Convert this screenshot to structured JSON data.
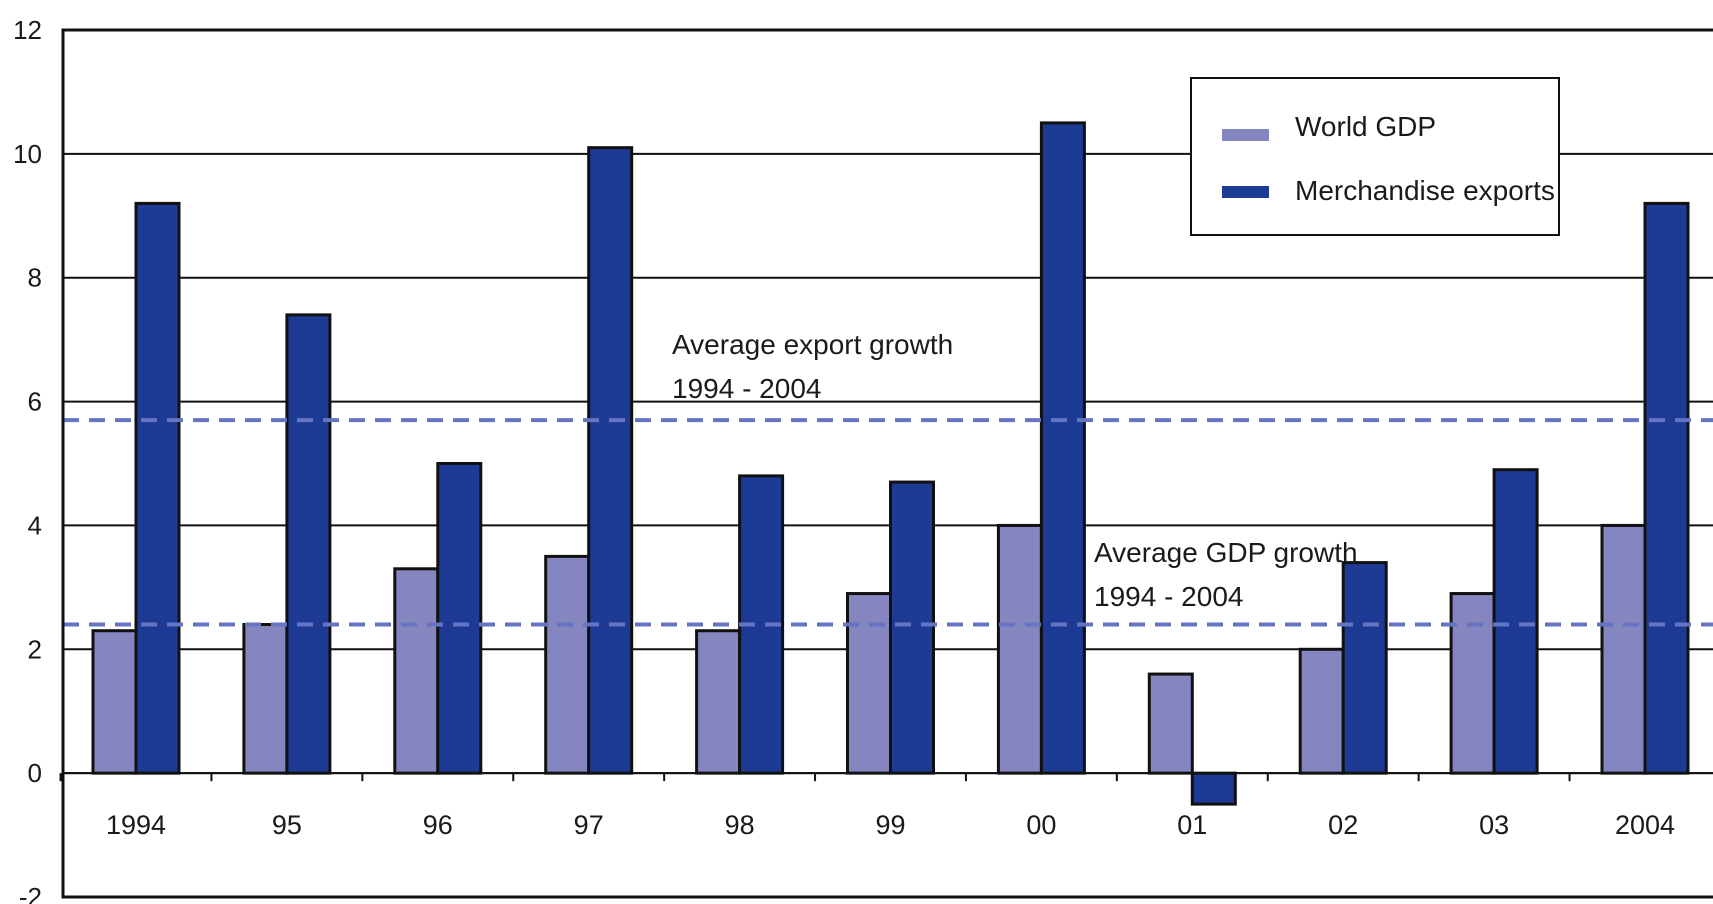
{
  "chart_data": {
    "type": "bar",
    "title": "",
    "xlabel": "",
    "ylabel": "",
    "categories": [
      "1994",
      "95",
      "96",
      "97",
      "98",
      "99",
      "00",
      "01",
      "02",
      "03",
      "2004"
    ],
    "series": [
      {
        "name": "World GDP",
        "color": "#8585c0",
        "values": [
          2.3,
          2.4,
          3.3,
          3.5,
          2.3,
          2.9,
          4.0,
          1.6,
          2.0,
          2.9,
          4.0
        ]
      },
      {
        "name": "Merchandise exports",
        "color": "#1d3b94",
        "values": [
          9.2,
          7.4,
          5.0,
          10.1,
          4.8,
          4.7,
          10.5,
          -0.5,
          3.4,
          4.9,
          9.2
        ]
      }
    ],
    "ylim": [
      -2,
      12
    ],
    "yticks": [
      -2,
      0,
      2,
      4,
      6,
      8,
      10,
      12
    ],
    "grid": true,
    "legend_position": "top-right",
    "reference_lines": [
      {
        "label_line1": "Average export growth",
        "label_line2": "1994 - 2004",
        "value": 5.7,
        "style": "dashed",
        "color": "#6674c4"
      },
      {
        "label_line1": "Average GDP growth",
        "label_line2": "1994 - 2004",
        "value": 2.4,
        "style": "dashed",
        "color": "#6674c4"
      }
    ]
  }
}
